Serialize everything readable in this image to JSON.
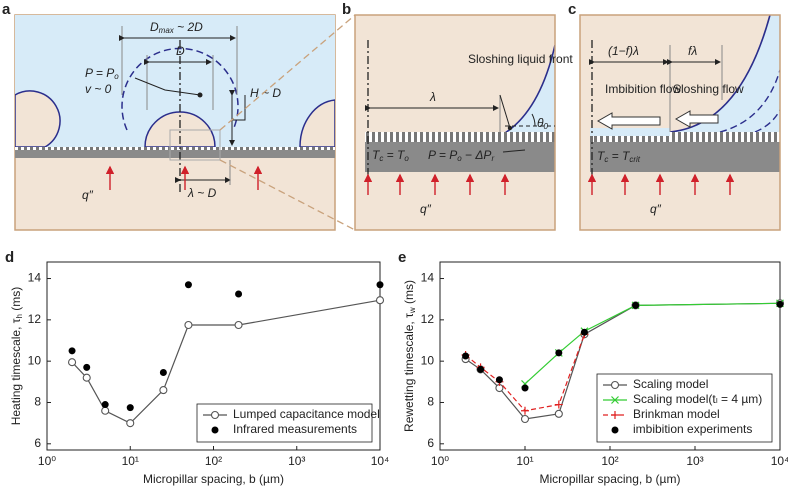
{
  "panels": {
    "a": {
      "letter": "a",
      "dmax": [
        "D",
        "max",
        " ~ 2D"
      ],
      "d": "D",
      "pressure": [
        "P = P",
        "o"
      ],
      "velocity": "v ~ 0",
      "height": "H ~ D",
      "spacing": "λ ~ D",
      "heat": "q″"
    },
    "b": {
      "letter": "b",
      "lambda": "λ",
      "front": "Sloshing liquid front",
      "angle": [
        "θ",
        "0"
      ],
      "temp": [
        "T",
        "c",
        " = T",
        "o"
      ],
      "pressure": [
        "P = P",
        "o",
        " − ΔP",
        "r"
      ],
      "heat": "q″"
    },
    "c": {
      "letter": "c",
      "imb_len": "(1−f)λ",
      "slosh_len": "fλ",
      "imbibition": "Imbibition flow",
      "sloshing": "Sloshing flow",
      "temp": [
        "T",
        "c",
        " = T",
        "crit"
      ],
      "heat": "q″"
    }
  },
  "chart_data": [
    {
      "type": "line",
      "label": "d",
      "ylabel": [
        "Heating timescale, τ",
        "h",
        " (ms)"
      ],
      "xlabel": "Micropillar spacing, b (µm)",
      "xscale": "log",
      "xlim": [
        1,
        10000
      ],
      "xticks": [
        {
          "value": 1,
          "label": "10⁰"
        },
        {
          "value": 10,
          "label": "10¹"
        },
        {
          "value": 100,
          "label": "10²"
        },
        {
          "value": 1000,
          "label": "10³"
        },
        {
          "value": 10000,
          "label": "10⁴"
        }
      ],
      "ylim": [
        5.7,
        14.8
      ],
      "yticks": [
        6,
        8,
        10,
        12,
        14
      ],
      "legend": "lower right",
      "series": [
        {
          "name": "Lumped capacitance model",
          "color": "#555555",
          "marker": "open-circle",
          "line": "solid",
          "x": [
            2,
            3,
            5,
            10,
            25,
            50,
            200,
            10000
          ],
          "values": [
            9.95,
            9.2,
            7.6,
            7.0,
            8.6,
            11.75,
            11.75,
            12.95
          ]
        },
        {
          "name": "Infrared measurements",
          "color": "#000000",
          "marker": "filled-circle",
          "line": "none",
          "x": [
            2,
            3,
            5,
            10,
            25,
            50,
            200,
            10000
          ],
          "values": [
            10.5,
            9.7,
            7.9,
            7.75,
            9.45,
            13.7,
            13.25,
            13.7
          ]
        }
      ]
    },
    {
      "type": "line",
      "label": "e",
      "ylabel": [
        "Rewetting timescale, τ",
        "w",
        " (ms)"
      ],
      "xlabel": "Micropillar spacing, b (µm)",
      "xscale": "log",
      "xlim": [
        1,
        10000
      ],
      "xticks": [
        {
          "value": 1,
          "label": "10⁰"
        },
        {
          "value": 10,
          "label": "10¹"
        },
        {
          "value": 100,
          "label": "10²"
        },
        {
          "value": 1000,
          "label": "10³"
        },
        {
          "value": 10000,
          "label": "10⁴"
        }
      ],
      "ylim": [
        5.7,
        14.8
      ],
      "yticks": [
        6,
        8,
        10,
        12,
        14
      ],
      "legend": "lower right",
      "series": [
        {
          "name": "Scaling model",
          "color": "#555555",
          "marker": "open-circle",
          "line": "solid",
          "x": [
            2,
            3,
            5,
            10,
            25,
            50,
            200,
            10000
          ],
          "values": [
            10.1,
            9.6,
            8.7,
            7.2,
            7.45,
            11.3,
            12.7,
            12.8
          ]
        },
        {
          "name": "Scaling model(tₗ = 4 µm)",
          "color": "#33cc33",
          "marker": "x",
          "line": "solid",
          "x": [
            10,
            25,
            50,
            200,
            10000
          ],
          "values": [
            8.9,
            10.4,
            11.45,
            12.7,
            12.8
          ]
        },
        {
          "name": "Brinkman model",
          "color": "#e02020",
          "marker": "plus",
          "line": "dashed",
          "x": [
            2,
            3,
            5,
            10,
            25,
            50
          ],
          "values": [
            10.3,
            9.7,
            9.0,
            7.6,
            7.9,
            11.3
          ]
        },
        {
          "name": "imbibition experiments",
          "color": "#000000",
          "marker": "filled-circle",
          "line": "none",
          "x": [
            2,
            3,
            5,
            10,
            25,
            50,
            200,
            10000
          ],
          "values": [
            10.25,
            9.6,
            9.1,
            8.7,
            10.4,
            11.4,
            12.7,
            12.75
          ]
        }
      ]
    }
  ]
}
